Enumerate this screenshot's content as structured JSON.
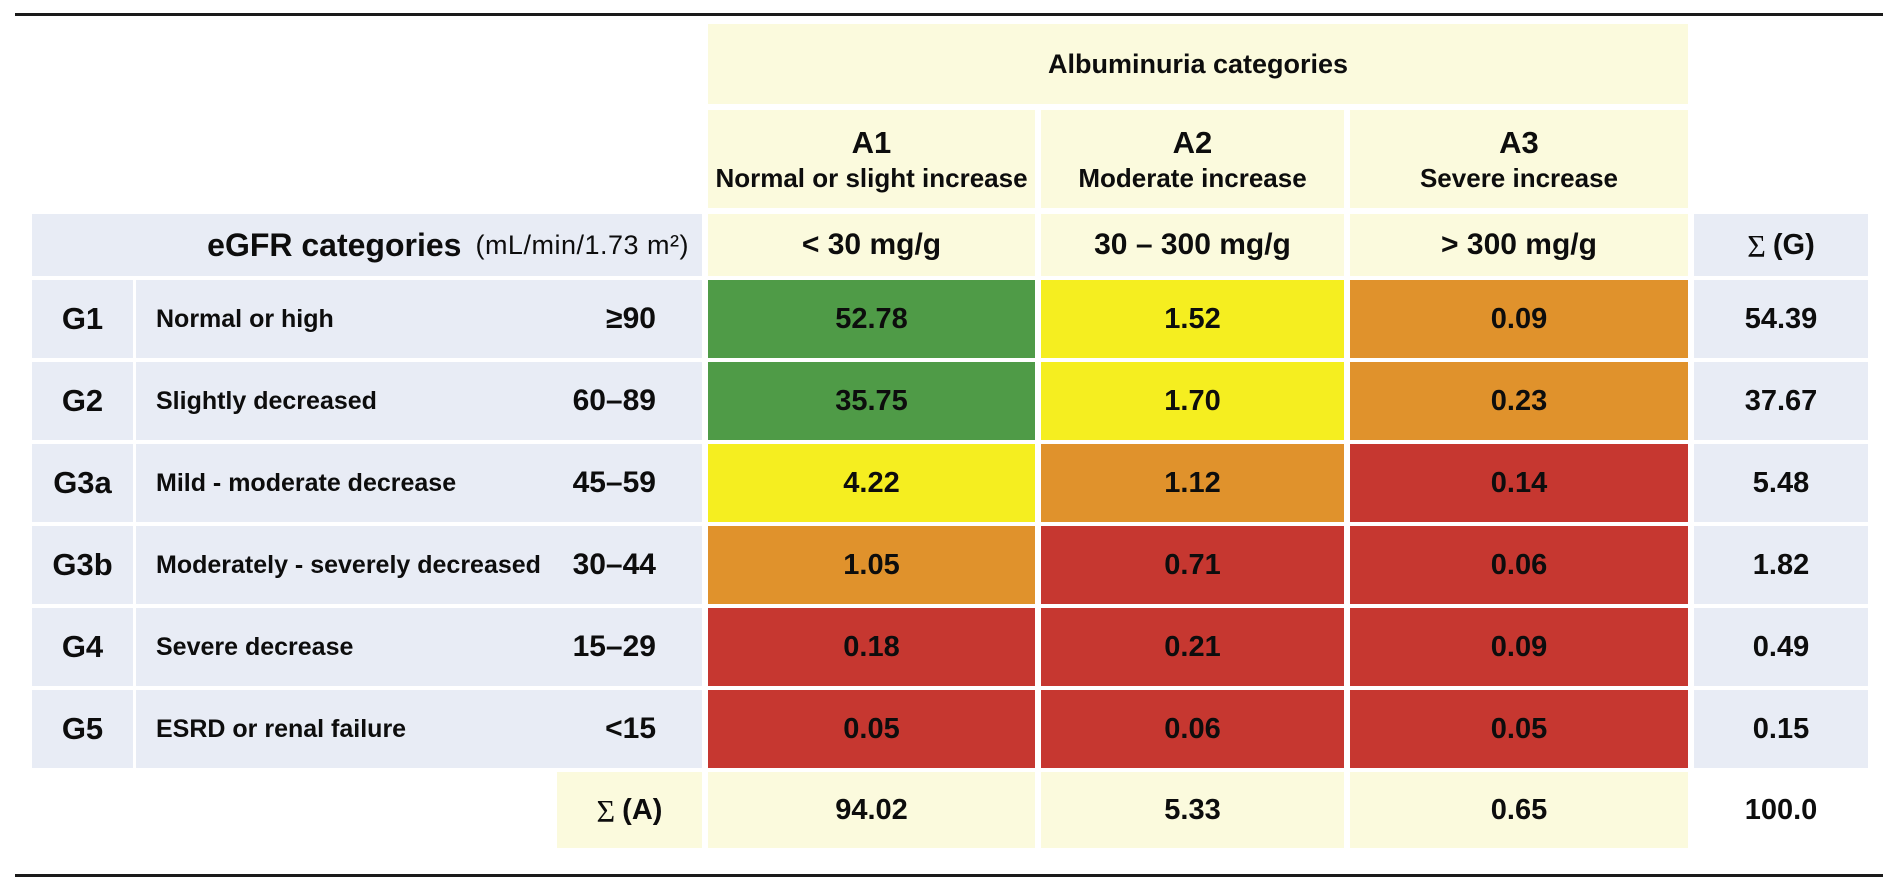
{
  "palette": {
    "green": "#4f9b47",
    "yellow": "#f5ee20",
    "orange": "#e0922c",
    "red": "#c63730",
    "lavender": "#e8ecf5",
    "pale_yellow": "#fbfadd"
  },
  "header": {
    "albuminuria_title": "Albuminuria categories",
    "a_categories": [
      {
        "code": "A1",
        "desc": "Normal or slight increase",
        "range": "< 30 mg/g"
      },
      {
        "code": "A2",
        "desc": "Moderate increase",
        "range": "30 – 300 mg/g"
      },
      {
        "code": "A3",
        "desc": "Severe increase",
        "range": "> 300 mg/g"
      }
    ],
    "egfr_title": "eGFR categories",
    "egfr_unit": "(mL/min/1.73 m²)",
    "sigma": "Σ",
    "sum_g_label": "(G)",
    "sum_a_label": "(A)"
  },
  "rows": [
    {
      "code": "G1",
      "desc": "Normal or high",
      "range": "≥90",
      "cells": [
        {
          "value": "52.78",
          "color": "green"
        },
        {
          "value": "1.52",
          "color": "yellow"
        },
        {
          "value": "0.09",
          "color": "orange"
        }
      ],
      "sum": "54.39"
    },
    {
      "code": "G2",
      "desc": "Slightly decreased",
      "range": "60–89",
      "cells": [
        {
          "value": "35.75",
          "color": "green"
        },
        {
          "value": "1.70",
          "color": "yellow"
        },
        {
          "value": "0.23",
          "color": "orange"
        }
      ],
      "sum": "37.67"
    },
    {
      "code": "G3a",
      "desc": "Mild - moderate decrease",
      "range": "45–59",
      "cells": [
        {
          "value": "4.22",
          "color": "yellow"
        },
        {
          "value": "1.12",
          "color": "orange"
        },
        {
          "value": "0.14",
          "color": "red"
        }
      ],
      "sum": "5.48"
    },
    {
      "code": "G3b",
      "desc": "Moderately - severely decreased",
      "range": "30–44",
      "cells": [
        {
          "value": "1.05",
          "color": "orange"
        },
        {
          "value": "0.71",
          "color": "red"
        },
        {
          "value": "0.06",
          "color": "red"
        }
      ],
      "sum": "1.82"
    },
    {
      "code": "G4",
      "desc": "Severe decrease",
      "range": "15–29",
      "cells": [
        {
          "value": "0.18",
          "color": "red"
        },
        {
          "value": "0.21",
          "color": "red"
        },
        {
          "value": "0.09",
          "color": "red"
        }
      ],
      "sum": "0.49"
    },
    {
      "code": "G5",
      "desc": "ESRD or renal failure",
      "range": "<15",
      "cells": [
        {
          "value": "0.05",
          "color": "red"
        },
        {
          "value": "0.06",
          "color": "red"
        },
        {
          "value": "0.05",
          "color": "red"
        }
      ],
      "sum": "0.15"
    }
  ],
  "totals": {
    "values": [
      "94.02",
      "5.33",
      "0.65"
    ],
    "total": "100.0"
  },
  "chart_data": {
    "type": "heatmap",
    "title": "Albuminuria categories",
    "xlabel": "Albuminuria categories",
    "ylabel": "eGFR categories (mL/min/1.73 m²)",
    "columns": [
      "A1 Normal or slight increase (< 30 mg/g)",
      "A2 Moderate increase (30 – 300 mg/g)",
      "A3 Severe increase (> 300 mg/g)"
    ],
    "rows": [
      "G1 Normal or high (≥90)",
      "G2 Slightly decreased (60–89)",
      "G3a Mild - moderate decrease (45–59)",
      "G3b Moderately - severely decreased (30–44)",
      "G4 Severe decrease (15–29)",
      "G5 ESRD or renal failure (<15)"
    ],
    "values": [
      [
        52.78,
        1.52,
        0.09
      ],
      [
        35.75,
        1.7,
        0.23
      ],
      [
        4.22,
        1.12,
        0.14
      ],
      [
        1.05,
        0.71,
        0.06
      ],
      [
        0.18,
        0.21,
        0.09
      ],
      [
        0.05,
        0.06,
        0.05
      ]
    ],
    "row_sums": [
      54.39,
      37.67,
      5.48,
      1.82,
      0.49,
      0.15
    ],
    "col_sums": [
      94.02,
      5.33,
      0.65
    ],
    "total": 100.0,
    "cell_colors": [
      [
        "green",
        "yellow",
        "orange"
      ],
      [
        "green",
        "yellow",
        "orange"
      ],
      [
        "yellow",
        "orange",
        "red"
      ],
      [
        "orange",
        "red",
        "red"
      ],
      [
        "red",
        "red",
        "red"
      ],
      [
        "red",
        "red",
        "red"
      ]
    ],
    "legend_position": "none",
    "grid": false
  }
}
